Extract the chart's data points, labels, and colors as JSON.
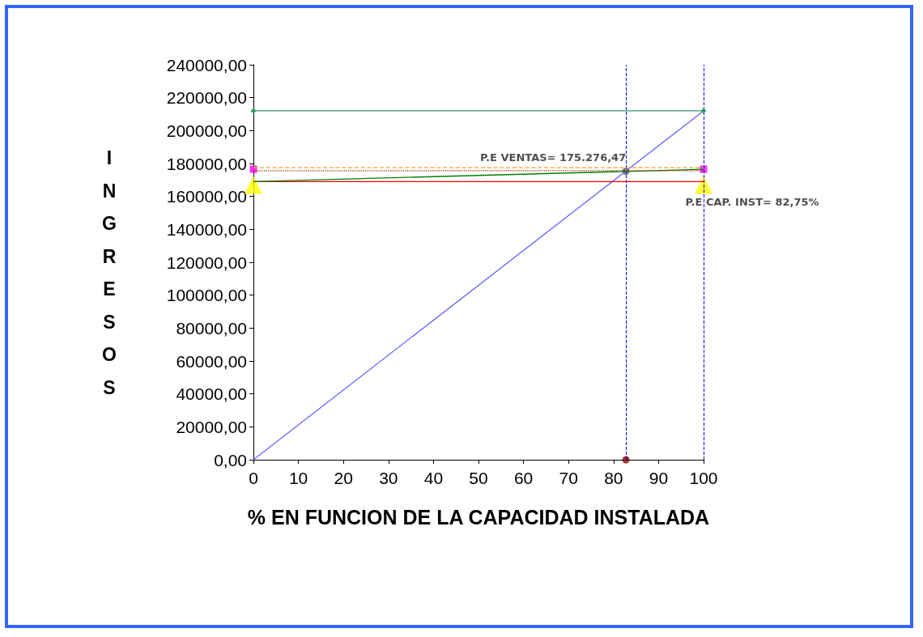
{
  "chart_data": {
    "type": "line",
    "xlabel": "% EN FUNCION DE LA CAPACIDAD INSTALADA",
    "ylabel": "INGRESOS",
    "series": [
      {
        "color": "#6666ff",
        "x": [
          0,
          100
        ],
        "values": [
          0,
          212000
        ],
        "marker": "none",
        "line_style": "solid"
      },
      {
        "color": "#339966",
        "x": [
          0,
          100
        ],
        "values": [
          212000,
          212000
        ],
        "marker": "diamond",
        "line_style": "solid"
      },
      {
        "color": "#ff0000",
        "x": [
          0,
          100
        ],
        "values": [
          169000,
          169000
        ],
        "marker": "none",
        "line_style": "solid"
      },
      {
        "color": "#008000",
        "x": [
          0,
          100
        ],
        "values": [
          169000,
          176500
        ],
        "marker": "none",
        "line_style": "solid"
      },
      {
        "color": "#ff9933",
        "x": [
          0,
          100
        ],
        "values": [
          177500,
          177500
        ],
        "marker": "none",
        "line_style": "dashed"
      },
      {
        "color": "#993300",
        "x": [
          0,
          100
        ],
        "values": [
          175600,
          175600
        ],
        "marker": "none",
        "line_style": "dotted"
      },
      {
        "type": "scatter",
        "color": "#ff00ff",
        "x": [
          0,
          100
        ],
        "values": [
          176500,
          176500
        ],
        "marker": "square"
      },
      {
        "type": "scatter",
        "color": "#ffff00",
        "x": [
          0,
          100
        ],
        "values": [
          167000,
          167000
        ],
        "marker": "triangle"
      },
      {
        "type": "scatter",
        "color": "#595959",
        "x": [
          82.75
        ],
        "values": [
          175300
        ],
        "marker": "circle"
      },
      {
        "type": "scatter",
        "color": "#8b0000",
        "x": [
          82.75
        ],
        "values": [
          0
        ],
        "marker": "circle"
      }
    ],
    "xlim": [
      0,
      100
    ],
    "xticks": [
      0,
      10,
      20,
      30,
      40,
      50,
      60,
      70,
      80,
      90,
      100
    ],
    "ylim": [
      0,
      240000
    ],
    "yticks": [
      {
        "value": 0,
        "label": "0,00"
      },
      {
        "value": 20000,
        "label": "20000,00"
      },
      {
        "value": 40000,
        "label": "40000,00"
      },
      {
        "value": 60000,
        "label": "60000,00"
      },
      {
        "value": 80000,
        "label": "80000,00"
      },
      {
        "value": 100000,
        "label": "100000,00"
      },
      {
        "value": 120000,
        "label": "120000,00"
      },
      {
        "value": 140000,
        "label": "140000,00"
      },
      {
        "value": 160000,
        "label": "160000,00"
      },
      {
        "value": 180000,
        "label": "180000,00"
      },
      {
        "value": 200000,
        "label": "200000,00"
      },
      {
        "value": 220000,
        "label": "220000,00"
      },
      {
        "value": 240000,
        "label": "240000,00"
      }
    ],
    "ref_lines": [
      {
        "axis": "x",
        "value": 82.75,
        "color": "#0000ff",
        "line_style": "dashed"
      },
      {
        "axis": "x",
        "value": 100,
        "color": "#0000ff",
        "line_style": "dashed"
      }
    ],
    "annotations": [
      {
        "text": "P.E VENTAS= 175.276,47",
        "x": 82.75,
        "y": 175276
      },
      {
        "text": "P.E CAP. INST= 82,75%",
        "x": 100,
        "y": 169000
      }
    ],
    "grid": false
  }
}
